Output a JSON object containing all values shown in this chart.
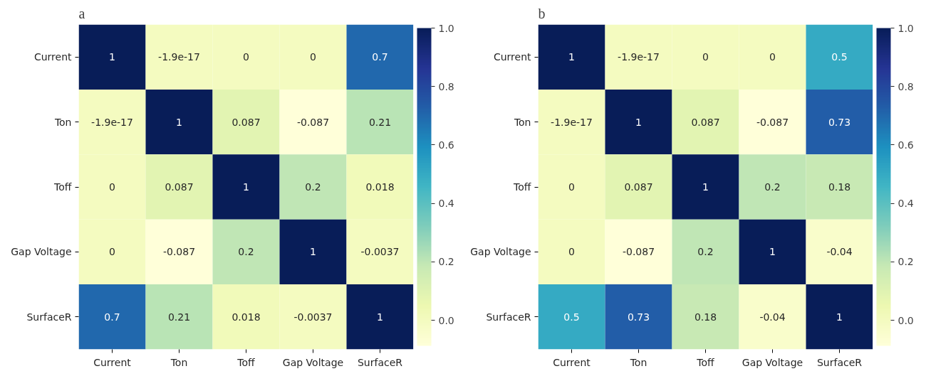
{
  "chart_data": [
    {
      "type": "heatmap",
      "title": "a",
      "categories": [
        "Current",
        "Ton",
        "Toff",
        "Gap Voltage",
        "SurfaceR"
      ],
      "y_categories": [
        "Current",
        "Ton",
        "Toff",
        "Gap Voltage",
        "SurfaceR"
      ],
      "cells": [
        [
          1,
          -1.9e-17,
          0,
          0,
          0.7
        ],
        [
          -1.9e-17,
          1,
          0.087,
          -0.087,
          0.21
        ],
        [
          0,
          0.087,
          1,
          0.2,
          0.018
        ],
        [
          0,
          -0.087,
          0.2,
          1,
          -0.0037
        ],
        [
          0.7,
          0.21,
          0.018,
          -0.0037,
          1
        ]
      ],
      "clim": [
        -0.087,
        1
      ],
      "cticks": [
        {
          "value": 0,
          "label": "0.0"
        },
        {
          "value": 0.2,
          "label": "0.2"
        },
        {
          "value": 0.4,
          "label": "0.4"
        },
        {
          "value": 0.6,
          "label": "0.6"
        },
        {
          "value": 0.8,
          "label": "0.8"
        },
        {
          "value": 1,
          "label": "1.0"
        }
      ],
      "data_labels": true
    },
    {
      "type": "heatmap",
      "title": "b",
      "categories": [
        "Current",
        "Ton",
        "Toff",
        "Gap Voltage",
        "SurfaceR"
      ],
      "y_categories": [
        "Current",
        "Ton",
        "Toff",
        "Gap Voltage",
        "SurfaceR"
      ],
      "cells": [
        [
          1,
          -1.9e-17,
          0,
          0,
          0.5
        ],
        [
          -1.9e-17,
          1,
          0.087,
          -0.087,
          0.73
        ],
        [
          0,
          0.087,
          1,
          0.2,
          0.18
        ],
        [
          0,
          -0.087,
          0.2,
          1,
          -0.04
        ],
        [
          0.5,
          0.73,
          0.18,
          -0.04,
          1
        ]
      ],
      "clim": [
        -0.087,
        1
      ],
      "cticks": [
        {
          "value": 0,
          "label": "0.0"
        },
        {
          "value": 0.2,
          "label": "0.2"
        },
        {
          "value": 0.4,
          "label": "0.4"
        },
        {
          "value": 0.6,
          "label": "0.6"
        },
        {
          "value": 0.8,
          "label": "0.8"
        },
        {
          "value": 1,
          "label": "1.0"
        }
      ],
      "data_labels": true
    }
  ]
}
